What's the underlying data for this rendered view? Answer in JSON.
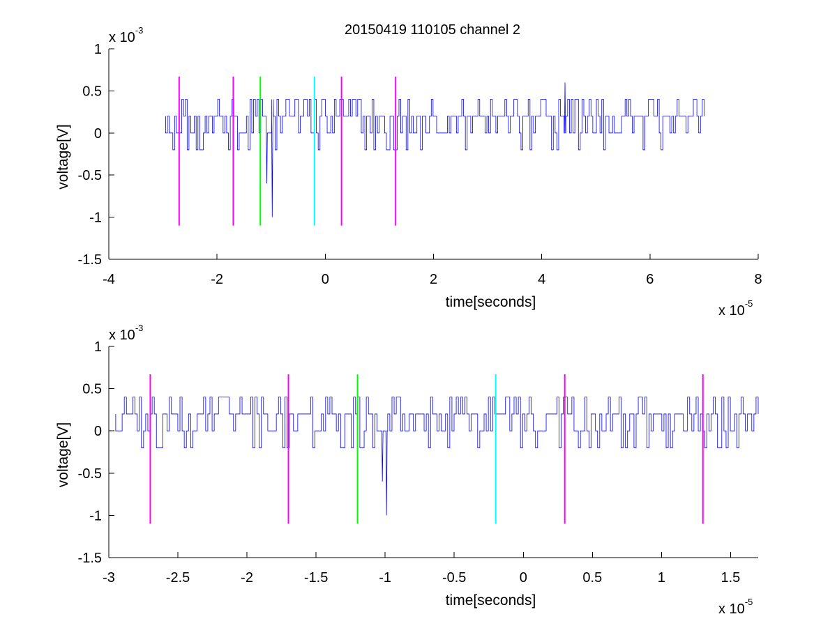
{
  "title": "20150419 110105 channel 2",
  "chart_data": [
    {
      "type": "line",
      "xlabel": "time[seconds]",
      "ylabel": "voltage[V]",
      "x_multiplier": {
        "base": "x 10",
        "exp": "-5"
      },
      "y_multiplier": {
        "base": "x 10",
        "exp": "-3"
      },
      "xlim": [
        -4,
        8
      ],
      "ylim": [
        -1.5,
        1
      ],
      "x_ticks": [
        -4,
        -2,
        0,
        2,
        4,
        6,
        8
      ],
      "x_tick_labels": [
        "-4",
        "-2",
        "0",
        "2",
        "4",
        "6",
        "8"
      ],
      "y_ticks": [
        -1.5,
        -1,
        -0.5,
        0,
        0.5,
        1
      ],
      "y_tick_labels": [
        "-1.5",
        "-1",
        "-0.5",
        "0",
        "0.5",
        "1"
      ],
      "grid": false,
      "signal": {
        "color": "#0000ff",
        "x_start": -2.95,
        "x_end": 7.0,
        "levels": [
          -0.2,
          0,
          0.2,
          0.4
        ],
        "baseline": 0.2,
        "spikes": [
          {
            "x": -0.98,
            "y": -1.0
          },
          {
            "x": -1.08,
            "y": -0.6
          },
          {
            "x": 4.43,
            "y": 0.6
          }
        ]
      },
      "markers": [
        {
          "x": -2.7,
          "color": "#ff00ff",
          "y_top": 0.67,
          "y_bottom": -1.1
        },
        {
          "x": -1.7,
          "color": "#ff00ff",
          "y_top": 0.67,
          "y_bottom": -1.1
        },
        {
          "x": -1.2,
          "color": "#00ff00",
          "y_top": 0.67,
          "y_bottom": -1.1
        },
        {
          "x": -0.2,
          "color": "#00ffff",
          "y_top": 0.67,
          "y_bottom": -1.1
        },
        {
          "x": 0.3,
          "color": "#ff00ff",
          "y_top": 0.67,
          "y_bottom": -1.1
        },
        {
          "x": 1.3,
          "color": "#ff00ff",
          "y_top": 0.67,
          "y_bottom": -1.1
        }
      ]
    },
    {
      "type": "line",
      "xlabel": "time[seconds]",
      "ylabel": "voltage[V]",
      "x_multiplier": {
        "base": "x 10",
        "exp": "-5"
      },
      "y_multiplier": {
        "base": "x 10",
        "exp": "-3"
      },
      "xlim": [
        -3.0,
        1.7
      ],
      "ylim": [
        -1.5,
        1
      ],
      "x_ticks": [
        -3,
        -2.5,
        -2,
        -1.5,
        -1,
        -0.5,
        0,
        0.5,
        1,
        1.5
      ],
      "x_tick_labels": [
        "-3",
        "-2.5",
        "-2",
        "-1.5",
        "-1",
        "-0.5",
        "0",
        "0.5",
        "1",
        "1.5"
      ],
      "y_ticks": [
        -1.5,
        -1,
        -0.5,
        0,
        0.5,
        1
      ],
      "y_tick_labels": [
        "-1.5",
        "-1",
        "-0.5",
        "0",
        "0.5",
        "1"
      ],
      "grid": false,
      "signal": {
        "color": "#0000ff",
        "x_start": -2.95,
        "x_end": 1.7,
        "levels": [
          -0.2,
          0,
          0.2,
          0.4
        ],
        "baseline": 0.2,
        "spikes": [
          {
            "x": -0.99,
            "y": -1.0
          },
          {
            "x": -1.02,
            "y": -0.6
          }
        ]
      },
      "markers": [
        {
          "x": -2.7,
          "color": "#ff00ff",
          "y_top": 0.67,
          "y_bottom": -1.1
        },
        {
          "x": -1.7,
          "color": "#ff00ff",
          "y_top": 0.67,
          "y_bottom": -1.1
        },
        {
          "x": -1.2,
          "color": "#00ff00",
          "y_top": 0.67,
          "y_bottom": -1.1
        },
        {
          "x": -0.2,
          "color": "#00ffff",
          "y_top": 0.67,
          "y_bottom": -1.1
        },
        {
          "x": 0.3,
          "color": "#ff00ff",
          "y_top": 0.67,
          "y_bottom": -1.1
        },
        {
          "x": 1.3,
          "color": "#ff00ff",
          "y_top": 0.67,
          "y_bottom": -1.1
        }
      ]
    }
  ]
}
